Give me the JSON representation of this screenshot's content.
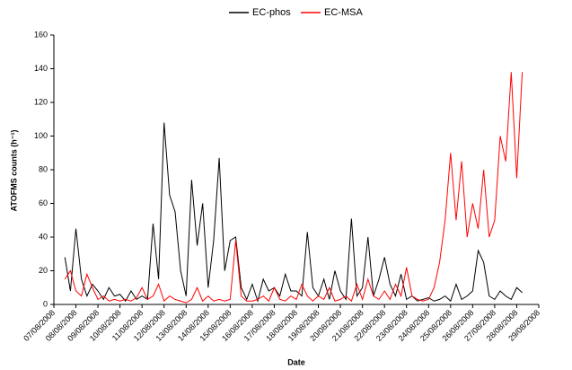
{
  "chart_data": {
    "type": "line",
    "xlabel": "Date",
    "ylabel": "ATOFMS counts (h⁻¹)",
    "categories": [
      "07/08/2008",
      null,
      null,
      null,
      "08/08/2008",
      null,
      null,
      null,
      "09/08/2008",
      null,
      null,
      null,
      "10/08/2008",
      null,
      null,
      null,
      "11/08/2008",
      null,
      null,
      null,
      "12/08/2008",
      null,
      null,
      null,
      "13/08/2008",
      null,
      null,
      null,
      "14/08/2008",
      null,
      null,
      null,
      "15/08/2008",
      null,
      null,
      null,
      "16/08/2008",
      null,
      null,
      null,
      "17/08/2008",
      null,
      null,
      null,
      "18/08/2008",
      null,
      null,
      null,
      "19/08/2008",
      null,
      null,
      null,
      "20/08/2008",
      null,
      null,
      null,
      "21/08/2008",
      null,
      null,
      null,
      "22/08/2008",
      null,
      null,
      null,
      "23/08/2008",
      null,
      null,
      null,
      "24/08/2008",
      null,
      null,
      null,
      "25/08/2008",
      null,
      null,
      null,
      "26/08/2008",
      null,
      null,
      null,
      "27/08/2008",
      null,
      null,
      null,
      "28/08/2008",
      null,
      null,
      null,
      "29/08/2008"
    ],
    "series": [
      {
        "name": "EC-phos",
        "color": "#000000",
        "values": [
          null,
          null,
          28,
          8,
          45,
          15,
          5,
          12,
          8,
          3,
          10,
          5,
          6,
          2,
          8,
          3,
          5,
          3,
          48,
          15,
          108,
          65,
          55,
          20,
          5,
          74,
          35,
          60,
          10,
          38,
          87,
          20,
          38,
          40,
          10,
          3,
          12,
          2,
          15,
          8,
          10,
          5,
          18,
          8,
          8,
          5,
          43,
          10,
          5,
          15,
          3,
          20,
          8,
          3,
          51,
          5,
          10,
          40,
          5,
          15,
          28,
          12,
          5,
          18,
          3,
          5,
          2,
          3,
          4,
          2,
          3,
          5,
          2,
          12,
          3,
          5,
          8,
          32,
          25,
          5,
          3,
          8,
          5,
          3,
          10,
          7,
          null,
          null,
          null
        ]
      },
      {
        "name": "EC-MSA",
        "color": "#ff0000",
        "values": [
          null,
          null,
          15,
          20,
          8,
          5,
          18,
          10,
          3,
          5,
          2,
          3,
          2,
          3,
          2,
          4,
          10,
          3,
          5,
          12,
          2,
          5,
          3,
          2,
          1,
          3,
          10,
          2,
          5,
          2,
          3,
          2,
          3,
          38,
          5,
          2,
          2,
          3,
          5,
          2,
          10,
          3,
          2,
          5,
          3,
          12,
          5,
          2,
          5,
          3,
          10,
          2,
          3,
          5,
          2,
          12,
          3,
          15,
          5,
          3,
          8,
          3,
          12,
          5,
          22,
          5,
          3,
          2,
          3,
          10,
          25,
          50,
          90,
          50,
          85,
          40,
          60,
          45,
          80,
          40,
          50,
          100,
          85,
          138,
          75,
          138,
          null,
          null,
          null
        ]
      }
    ],
    "ylim": [
      0,
      160
    ],
    "yticks": [
      0,
      20,
      40,
      60,
      80,
      100,
      120,
      140,
      160
    ],
    "legend": "top",
    "grid": false
  }
}
